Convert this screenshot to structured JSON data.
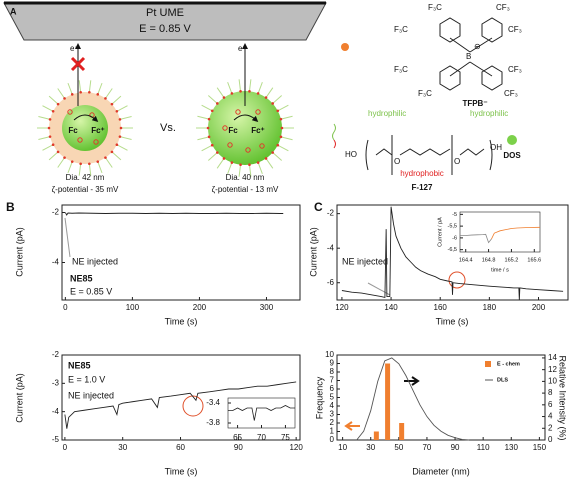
{
  "panel_a": {
    "label": "A",
    "electrode": "Pt UME",
    "potential": "E = 0.85 V",
    "electron": "e⁻",
    "fc": "Fc",
    "fc_plus": "Fc⁺",
    "vs": "Vs.",
    "left": {
      "diameter": "Dia. 42 nm",
      "zeta": "ζ-potential - 35 mV"
    },
    "right": {
      "diameter": "Dia. 40 nm",
      "zeta": "ζ-potential - 13 mV"
    },
    "cf3_left": "F₃C",
    "cf3_right": "CF₃",
    "boron": "B",
    "charge": "⊖",
    "tfpb": "TFPB⁻",
    "hydrophilic": "hydrophilic",
    "hydrophobic": "hydrophobic",
    "ho": "HO",
    "oxygen": "O",
    "oh": "OH",
    "f127": "F-127",
    "dos": "DOS"
  },
  "chart_data": [
    {
      "type": "line",
      "panel_label": "B",
      "xlabel": "Time (s)",
      "ylabel": "Current (pA)",
      "xlim": [
        -5,
        350
      ],
      "xticks": [
        0,
        100,
        200,
        300
      ],
      "ylim": [
        -5.5,
        -1.7
      ],
      "yticks": [
        -4,
        -2
      ],
      "annotations": [
        "NE injected",
        "NE85",
        "E = 0.85 V"
      ],
      "series": [
        {
          "color": "#222",
          "x": [
            0,
            2,
            4,
            10,
            20,
            40,
            60,
            80,
            100,
            120,
            140,
            160,
            180,
            200,
            220,
            240,
            260,
            280,
            300,
            320,
            325
          ],
          "values": [
            -2.0,
            -2.1,
            -2.02,
            -2.03,
            -2.02,
            -2.03,
            -2.04,
            -2.03,
            -2.03,
            -2.04,
            -2.03,
            -2.04,
            -2.03,
            -2.04,
            -2.04,
            -2.03,
            -2.04,
            -2.04,
            -2.03,
            -2.04,
            -2.04
          ]
        }
      ]
    },
    {
      "type": "line",
      "panel_label": "C",
      "xlabel": "Time (s)",
      "ylabel": "Current (pA)",
      "xlim": [
        118,
        212
      ],
      "xticks": [
        120,
        140,
        160,
        180,
        200
      ],
      "ylim": [
        -7.0,
        -1.5
      ],
      "yticks": [
        -6,
        -4,
        -2
      ],
      "annotations": [
        "NE injected"
      ],
      "series": [
        {
          "color": "#222",
          "x": [
            120,
            124,
            128,
            132,
            136,
            137.5,
            138,
            138.3,
            139.5,
            140,
            141,
            142,
            144,
            146,
            148,
            150,
            152,
            155,
            158,
            160,
            163,
            164.8,
            165,
            165.2,
            168,
            172,
            176,
            180,
            185,
            190,
            192,
            192.2,
            192.4,
            195,
            200,
            205,
            210
          ],
          "values": [
            -6.45,
            -6.55,
            -6.6,
            -6.7,
            -6.8,
            -6.85,
            -2.9,
            -6.8,
            -6.8,
            -1.6,
            -2.6,
            -3.3,
            -4.0,
            -4.5,
            -4.8,
            -5.1,
            -5.3,
            -5.5,
            -5.65,
            -5.8,
            -5.9,
            -5.95,
            -6.7,
            -6.0,
            -6.05,
            -6.1,
            -6.15,
            -6.2,
            -6.25,
            -6.3,
            -6.3,
            -7.0,
            -6.3,
            -6.35,
            -6.4,
            -6.45,
            -6.5
          ]
        }
      ]
    },
    {
      "type": "line",
      "xlabel": "time / s",
      "ylabel": "Current / pA",
      "xlim": [
        164.3,
        165.7
      ],
      "xticks": [
        164.4,
        164.8,
        165.2,
        165.6
      ],
      "ylim": [
        -6.6,
        -4.9
      ],
      "yticks": [
        -5,
        {
          "value": -5.5,
          "label": "-5,5"
        },
        -6,
        {
          "value": -6.5,
          "label": "-6,5"
        }
      ],
      "series": [
        {
          "color": "#888",
          "x": [
            164.3,
            164.4,
            164.5,
            164.6,
            164.7,
            164.75,
            164.8,
            164.85
          ],
          "values": [
            -5.9,
            -5.9,
            -5.88,
            -5.87,
            -5.86,
            -5.85,
            -6.2,
            -6.05
          ]
        },
        {
          "color": "#f07f2f",
          "x": [
            164.85,
            164.9,
            165.0,
            165.1,
            165.2,
            165.3,
            165.5,
            165.7
          ],
          "values": [
            -6.05,
            -5.8,
            -5.7,
            -5.65,
            -5.6,
            -5.58,
            -5.56,
            -5.55
          ]
        }
      ]
    },
    {
      "type": "line",
      "xlabel": "Time (s)",
      "ylabel": "Current (pA)",
      "xlim": [
        -1.5,
        122
      ],
      "xticks": [
        0,
        30,
        60,
        90,
        120
      ],
      "ylim": [
        -5,
        -2
      ],
      "yticks": [
        -5,
        -4,
        -3,
        -2
      ],
      "annotations": [
        "NE85",
        "E = 1.0 V",
        "NE injected"
      ],
      "series": [
        {
          "color": "#222",
          "x": [
            0,
            1,
            2,
            5,
            10,
            15,
            20,
            25,
            27,
            28,
            30,
            35,
            40,
            45,
            48,
            49,
            55,
            60,
            65,
            68,
            69,
            75,
            80,
            85,
            90,
            95,
            100,
            105,
            110,
            115,
            120
          ],
          "values": [
            -4.1,
            -4.6,
            -4.2,
            -4.0,
            -3.95,
            -3.9,
            -3.85,
            -3.8,
            -4.1,
            -3.75,
            -3.7,
            -3.65,
            -3.6,
            -3.55,
            -3.85,
            -3.5,
            -3.45,
            -3.4,
            -3.35,
            -3.6,
            -3.35,
            -3.3,
            -3.25,
            -3.2,
            -3.2,
            -3.15,
            -3.1,
            -3.1,
            -3.05,
            -3.0,
            -2.95
          ]
        }
      ]
    },
    {
      "type": "line",
      "xlim": [
        63,
        77
      ],
      "xticks": [
        65,
        70,
        75
      ],
      "ylim": [
        -3.9,
        -3.3
      ],
      "yticks": [
        -3.8,
        -3.4
      ],
      "series": [
        {
          "color": "#222",
          "x": [
            63,
            64,
            65,
            66,
            67,
            68,
            68.5,
            69,
            70,
            71,
            72,
            73,
            74,
            75,
            76,
            77
          ],
          "values": [
            -3.55,
            -3.55,
            -3.5,
            -3.55,
            -3.5,
            -3.5,
            -3.75,
            -3.5,
            -3.5,
            -3.5,
            -3.55,
            -3.5,
            -3.5,
            -3.45,
            -3.5,
            -3.5
          ]
        }
      ]
    },
    {
      "type": "bar",
      "xlabel": "Diameter (nm)",
      "ylabel": "Frequency",
      "y2label": "Relative Intensity (%)",
      "xlim": [
        6,
        154
      ],
      "xticks": [
        10,
        30,
        50,
        70,
        90,
        110,
        130,
        150
      ],
      "ylim": [
        0,
        10
      ],
      "yticks": [
        0,
        1,
        2,
        3,
        4,
        5,
        6,
        7,
        8,
        9,
        10
      ],
      "y2lim": [
        0,
        14.5
      ],
      "y2ticks": [
        0,
        2,
        4,
        6,
        8,
        10,
        12,
        14
      ],
      "legend": "upper right",
      "series": [
        {
          "name": "E - chem",
          "color": "#f07f2f",
          "x": [
            34,
            42,
            52
          ],
          "values": [
            1,
            9,
            2
          ]
        },
        {
          "name": "DLS",
          "type": "line",
          "axis": "y2",
          "color": "#555",
          "x": [
            20,
            25,
            30,
            35,
            40,
            45,
            50,
            55,
            60,
            65,
            70,
            75,
            80,
            85,
            90,
            95,
            100
          ],
          "values": [
            0,
            1.5,
            5,
            10,
            13.5,
            14,
            13,
            11,
            8.5,
            6,
            4,
            2.5,
            1.5,
            0.8,
            0.4,
            0.1,
            0
          ]
        }
      ]
    }
  ]
}
